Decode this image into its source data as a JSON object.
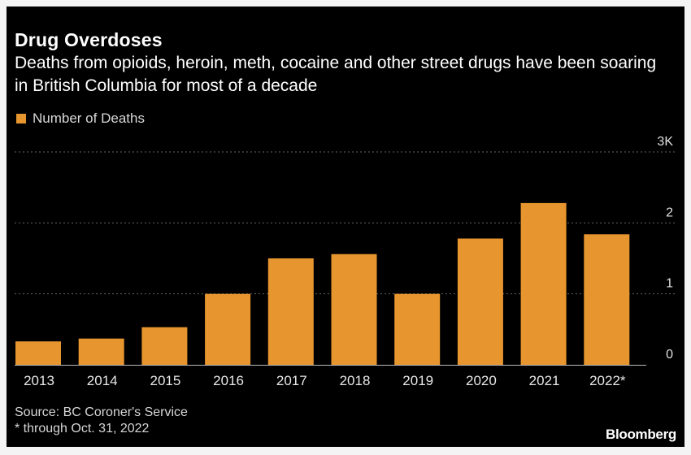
{
  "title": "Drug Overdoses",
  "subtitle": "Deaths from opioids, heroin, meth, cocaine and other street drugs have been soaring in British Columbia for most of a decade",
  "source": "Source: BC Coroner's Service",
  "footnote": "* through Oct. 31, 2022",
  "brand": "Bloomberg",
  "colors": {
    "bar": "#e7952e",
    "background": "#000000",
    "grid": "#666666"
  },
  "chart_data": {
    "type": "bar",
    "categories": [
      "2013",
      "2014",
      "2015",
      "2016",
      "2017",
      "2018",
      "2019",
      "2020",
      "2021",
      "2022*"
    ],
    "series": [
      {
        "name": "Number of Deaths",
        "values": [
          330,
          370,
          530,
          1000,
          1500,
          1560,
          1000,
          1780,
          2280,
          1840
        ]
      }
    ],
    "y_ticks": [
      "0",
      "1",
      "2",
      "3K"
    ],
    "ylim": [
      0,
      3000
    ],
    "grid": true,
    "legend": "top-left"
  }
}
